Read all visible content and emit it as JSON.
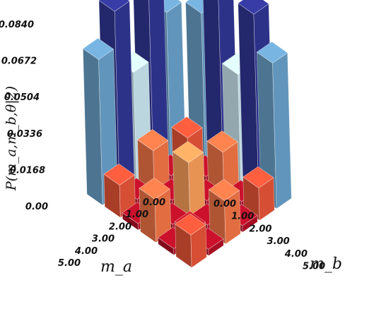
{
  "chart_data": {
    "type": "bar3d",
    "title": "",
    "xlabel": "m_a",
    "ylabel": "m_b",
    "zlabel": "P(m_a,m_b,θ|2)",
    "x_ticks": [
      "0.00",
      "1.00",
      "2.00",
      "3.00",
      "4.00",
      "5.00"
    ],
    "y_ticks": [
      "0.00",
      "1.00",
      "2.00",
      "3.00",
      "4.00",
      "5.00"
    ],
    "z_ticks": [
      "0.00",
      "0.0168",
      "0.0336",
      "0.0504",
      "0.0672",
      "0.0840"
    ],
    "zlim": [
      0,
      0.084
    ],
    "grid": false,
    "legend": "none",
    "m_a": [
      0,
      1,
      2,
      3,
      4,
      5
    ],
    "m_b": [
      0,
      1,
      2,
      3,
      4,
      5
    ],
    "values": [
      [
        0.0,
        0.0672,
        0.084,
        0.0504,
        0.084,
        0.0672
      ],
      [
        0.0672,
        0.015,
        0.003,
        0.02,
        0.003,
        0.015
      ],
      [
        0.084,
        0.003,
        0.005,
        0.003,
        0.005,
        0.003
      ],
      [
        0.0504,
        0.02,
        0.003,
        0.026,
        0.003,
        0.02
      ],
      [
        0.084,
        0.003,
        0.005,
        0.003,
        0.005,
        0.003
      ],
      [
        0.0672,
        0.015,
        0.003,
        0.02,
        0.003,
        0.015
      ]
    ],
    "colorscale": "blue-high / red-low",
    "colormap": [
      "#a50026",
      "#d73027",
      "#f46d43",
      "#fdae61",
      "#fee090",
      "#e0f3f8",
      "#abd9e9",
      "#74add1",
      "#4575b4",
      "#313695"
    ]
  }
}
